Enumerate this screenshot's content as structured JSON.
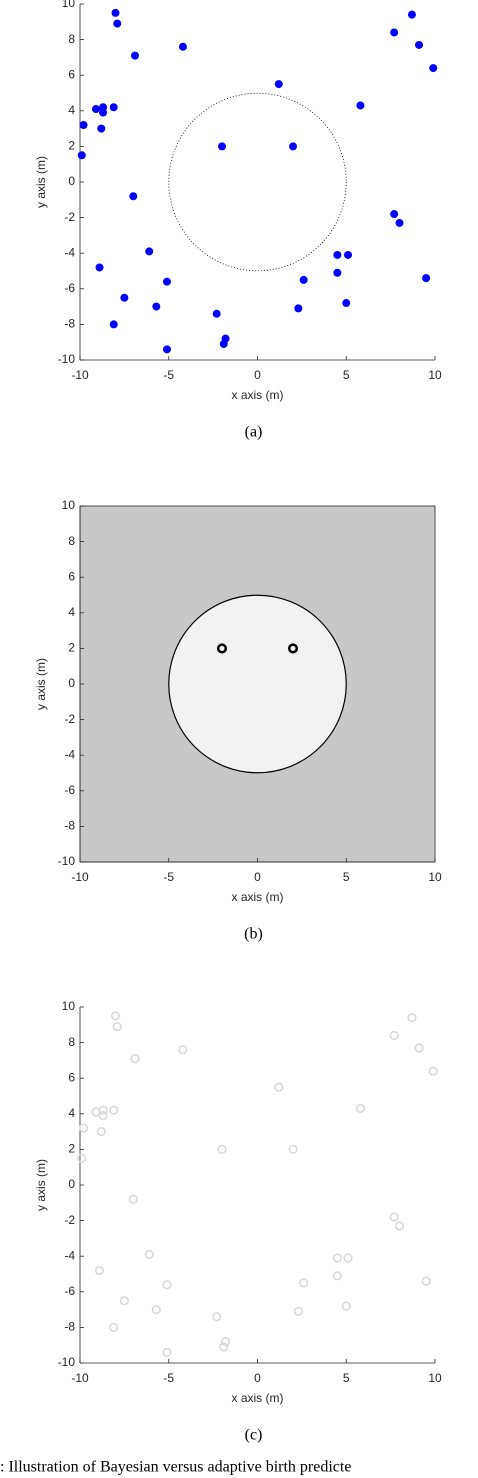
{
  "chart_data": [
    {
      "type": "scatter",
      "subfigure_label": "(a)",
      "xlabel": "x axis (m)",
      "ylabel": "y axis (m)",
      "xlim": [
        -10,
        10
      ],
      "ylim": [
        -10,
        10
      ],
      "xticks": [
        -10,
        -5,
        0,
        5,
        10
      ],
      "yticks": [
        -10,
        -8,
        -6,
        -4,
        -2,
        0,
        2,
        4,
        6,
        8,
        10
      ],
      "marker": "filled",
      "color": "#0000ff",
      "background": "#ffffff",
      "circle": {
        "cx": 0,
        "cy": 0,
        "r": 5,
        "style": "dotted",
        "fill": "none"
      },
      "x": [
        -8,
        -7.9,
        -4.2,
        -6.9,
        8.7,
        7.7,
        9.1,
        9.9,
        1.2,
        5.8,
        -9.1,
        -8.7,
        -8.7,
        -8.1,
        -9.8,
        -8.8,
        -9.9,
        -2,
        2,
        -7,
        7.7,
        8,
        -6.1,
        4.5,
        5.1,
        -8.9,
        4.5,
        -5.1,
        2.6,
        9.5,
        -7.5,
        -5.7,
        5,
        2.3,
        -2.3,
        -8.1,
        -1.8,
        -1.9,
        -5.1
      ],
      "values": [
        9.5,
        8.9,
        7.6,
        7.1,
        9.4,
        8.4,
        7.7,
        6.4,
        5.5,
        4.3,
        4.1,
        4.2,
        3.9,
        4.2,
        3.2,
        3.0,
        1.5,
        2,
        2,
        -0.8,
        -1.8,
        -2.3,
        -3.9,
        -4.1,
        -4.1,
        -4.8,
        -5.1,
        -5.6,
        -5.5,
        -5.4,
        -6.5,
        -7,
        -6.8,
        -7.1,
        -7.4,
        -8,
        -8.8,
        -9.1,
        -9.4
      ]
    },
    {
      "type": "scatter",
      "subfigure_label": "(b)",
      "xlabel": "x axis (m)",
      "ylabel": "y axis (m)",
      "xlim": [
        -10,
        10
      ],
      "ylim": [
        -10,
        10
      ],
      "xticks": [
        -10,
        -5,
        0,
        5,
        10
      ],
      "yticks": [
        -10,
        -8,
        -6,
        -4,
        -2,
        0,
        2,
        4,
        6,
        8,
        10
      ],
      "marker": "open",
      "color": "#000000",
      "background": "#c8c8c8",
      "circle": {
        "cx": 0,
        "cy": 0,
        "r": 5,
        "style": "solid",
        "fill": "#f2f2f2"
      },
      "x": [
        -2,
        2
      ],
      "values": [
        2,
        2
      ]
    },
    {
      "type": "scatter",
      "subfigure_label": "(c)",
      "xlabel": "x axis (m)",
      "ylabel": "y axis (m)",
      "xlim": [
        -10,
        10
      ],
      "ylim": [
        -10,
        10
      ],
      "xticks": [
        -10,
        -5,
        0,
        5,
        10
      ],
      "yticks": [
        -10,
        -8,
        -6,
        -4,
        -2,
        0,
        2,
        4,
        6,
        8,
        10
      ],
      "marker": "open",
      "color": "#d9d9d9",
      "background": "#ffffff",
      "x": [
        -8,
        -7.9,
        -4.2,
        -6.9,
        8.7,
        7.7,
        9.1,
        9.9,
        1.2,
        5.8,
        -9.1,
        -8.7,
        -8.7,
        -8.1,
        -9.8,
        -8.8,
        -9.9,
        -2,
        2,
        -7,
        7.7,
        8,
        -6.1,
        4.5,
        5.1,
        -8.9,
        4.5,
        -5.1,
        2.6,
        9.5,
        -7.5,
        -5.7,
        5,
        2.3,
        -2.3,
        -8.1,
        -1.8,
        -1.9,
        -5.1
      ],
      "values": [
        9.5,
        8.9,
        7.6,
        7.1,
        9.4,
        8.4,
        7.7,
        6.4,
        5.5,
        4.3,
        4.1,
        4.2,
        3.9,
        4.2,
        3.2,
        3.0,
        1.5,
        2,
        2,
        -0.8,
        -1.8,
        -2.3,
        -3.9,
        -4.1,
        -4.1,
        -4.8,
        -5.1,
        -5.6,
        -5.5,
        -5.4,
        -6.5,
        -7,
        -6.8,
        -7.1,
        -7.4,
        -8,
        -8.8,
        -9.1,
        -9.4
      ]
    }
  ],
  "caption": ": Illustration of Bayesian versus adaptive birth predicte"
}
